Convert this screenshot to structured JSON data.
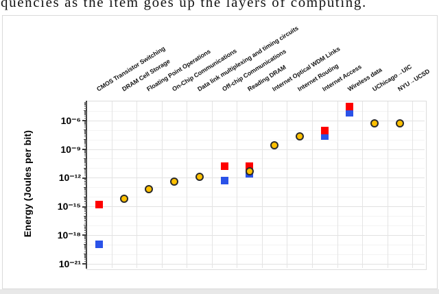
{
  "caption": {
    "fragment": "quencies as the item goes up the layers of computing."
  },
  "figure": {
    "background": "#ffffff",
    "border_color": "#d9d9d9",
    "bottom_strip_color": "#e8e8e8"
  },
  "chart_data": {
    "type": "scatter",
    "title": "",
    "xlabel": "",
    "ylabel": "Energy (Joules per bit)",
    "y_scale": "log",
    "ylim": [
      1e-21,
      0.0001
    ],
    "grid": true,
    "legend": "none",
    "y_tick_labels": [
      "10⁻⁶",
      "10⁻⁹",
      "10⁻¹²",
      "10⁻¹⁵",
      "10⁻¹⁸",
      "10⁻²¹"
    ],
    "y_tick_exponents": [
      -6,
      -9,
      -12,
      -15,
      -18,
      -21
    ],
    "categories": [
      "CMOS Transistor Switching",
      "DRAM Cell Storage",
      "Floating Point Operations",
      "On-Chip Communications",
      "Data link multiplexing and timing circuits",
      "Off-chip Communications",
      "Reading DRAM",
      "Internet Optical WDM Links",
      "Internet Routing",
      "Internet Access",
      "Wireless data",
      "UChicago→UIC",
      "NYU→UCSD"
    ],
    "units": "Joules per bit",
    "series": [
      {
        "name": "blue squares",
        "marker": "square",
        "color": "#2a52e8",
        "points": [
          {
            "category_index": 0,
            "category": "CMOS Transistor Switching",
            "value": 1e-19
          },
          {
            "category_index": 5,
            "category": "Off-chip Communications",
            "value": 5e-13
          },
          {
            "category_index": 6,
            "category": "Reading DRAM",
            "value": 2.7e-12
          },
          {
            "category_index": 9,
            "category": "Internet Access",
            "value": 2.5e-08
          },
          {
            "category_index": 10,
            "category": "Wireless data",
            "value": 6e-06
          }
        ]
      },
      {
        "name": "red squares",
        "marker": "square",
        "color": "#fe0000",
        "points": [
          {
            "category_index": 0,
            "category": "CMOS Transistor Switching",
            "value": 1.5e-15
          },
          {
            "category_index": 5,
            "category": "Off-chip Communications",
            "value": 1.5e-11
          },
          {
            "category_index": 6,
            "category": "Reading DRAM",
            "value": 1.5e-11
          },
          {
            "category_index": 9,
            "category": "Internet Access",
            "value": 9e-08
          },
          {
            "category_index": 10,
            "category": "Wireless data",
            "value": 3e-05
          }
        ]
      },
      {
        "name": "yellow circles",
        "marker": "circle",
        "color": "#ffc000",
        "points": [
          {
            "category_index": 1,
            "category": "DRAM Cell Storage",
            "value": 6e-15
          },
          {
            "category_index": 2,
            "category": "Floating Point Operations",
            "value": 6e-14
          },
          {
            "category_index": 3,
            "category": "On-Chip Communications",
            "value": 4e-13
          },
          {
            "category_index": 4,
            "category": "Data link multiplexing and timing circuits",
            "value": 1.2e-12
          },
          {
            "category_index": 6,
            "category": "Reading DRAM",
            "value": 4.5e-12
          },
          {
            "category_index": 7,
            "category": "Internet Optical WDM Links",
            "value": 2.7e-09
          },
          {
            "category_index": 8,
            "category": "Internet Routing",
            "value": 2.3e-08
          },
          {
            "category_index": 11,
            "category": "UChicago→UIC",
            "value": 5e-07
          },
          {
            "category_index": 12,
            "category": "NYU→UCSD",
            "value": 5e-07
          }
        ]
      }
    ]
  }
}
